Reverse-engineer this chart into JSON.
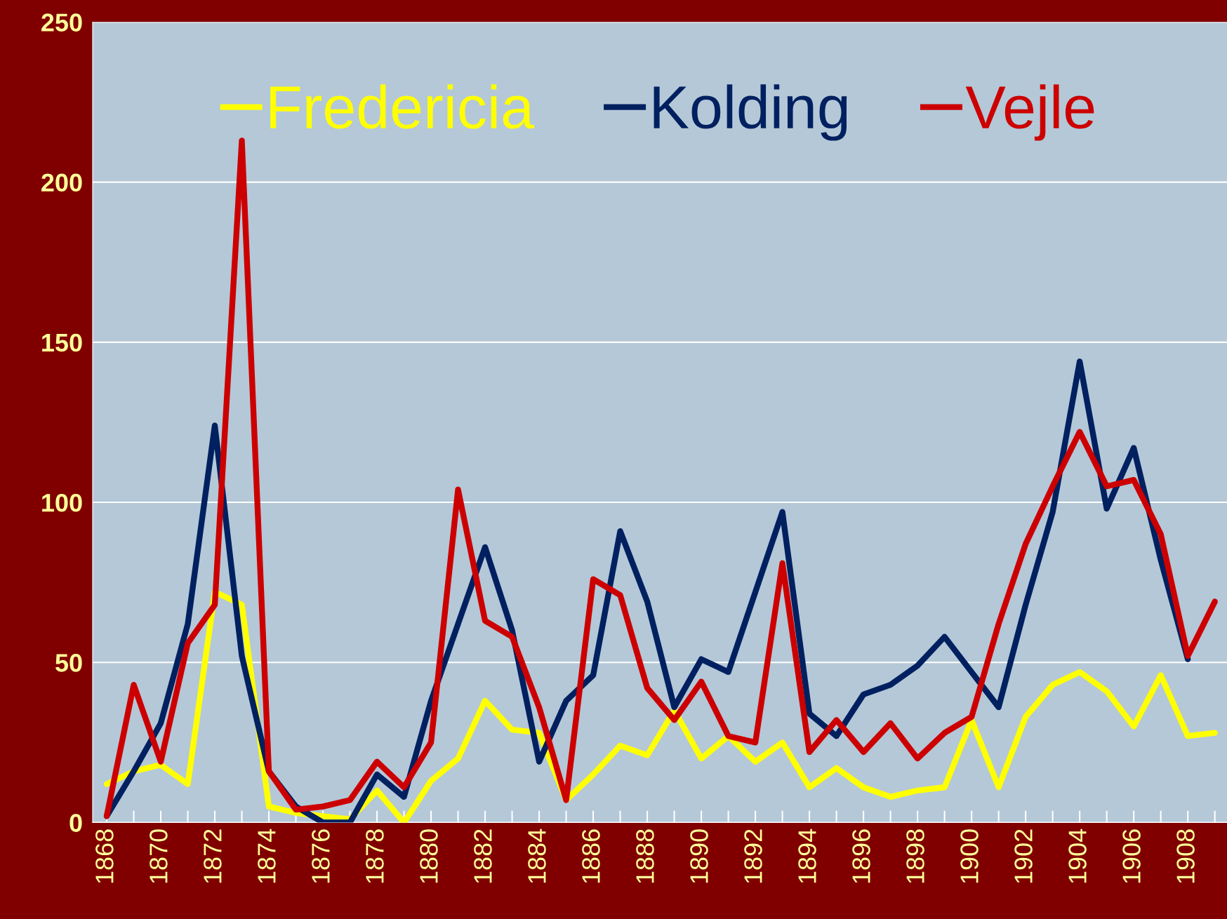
{
  "chart_data": {
    "type": "line",
    "categories": [
      "1868",
      null,
      "1870",
      null,
      "1872",
      null,
      "1874",
      null,
      "1876",
      null,
      "1878",
      null,
      "1880",
      null,
      "1882",
      null,
      "1884",
      null,
      "1886",
      null,
      "1888",
      null,
      "1890",
      null,
      "1892",
      null,
      "1894",
      null,
      "1896",
      null,
      "1898",
      null,
      "1900",
      null,
      "1902",
      null,
      "1904",
      null,
      "1906",
      null,
      "1908",
      null
    ],
    "series": [
      {
        "name": "Fredericia",
        "color": "#ffff00",
        "values": [
          12,
          16,
          18,
          12,
          72,
          68,
          5,
          3,
          2,
          1,
          10,
          0,
          13,
          20,
          38,
          29,
          28,
          7,
          15,
          24,
          21,
          35,
          20,
          27,
          19,
          25,
          11,
          17,
          11,
          8,
          10,
          11,
          32,
          11,
          33,
          43,
          47,
          41,
          30,
          46,
          27,
          28
        ]
      },
      {
        "name": "Kolding",
        "color": "#002060",
        "values": [
          2,
          16,
          31,
          62,
          124,
          52,
          16,
          5,
          0,
          0,
          15,
          8,
          38,
          62,
          86,
          60,
          19,
          38,
          46,
          91,
          69,
          36,
          51,
          47,
          72,
          97,
          34,
          27,
          40,
          43,
          49,
          58,
          47,
          36,
          68,
          97,
          144,
          98,
          117,
          82,
          51,
          null
        ]
      },
      {
        "name": "Vejle",
        "color": "#cc0000",
        "values": [
          2,
          43,
          19,
          56,
          68,
          213,
          16,
          4,
          5,
          7,
          19,
          11,
          25,
          104,
          63,
          58,
          36,
          7,
          76,
          71,
          42,
          32,
          44,
          27,
          25,
          81,
          22,
          32,
          22,
          31,
          20,
          28,
          33,
          62,
          87,
          105,
          122,
          105,
          107,
          90,
          52,
          69
        ]
      }
    ],
    "ylim": [
      0,
      250
    ],
    "yticks": [
      0,
      50,
      100,
      150,
      200,
      250
    ],
    "grid": "y",
    "legend": "top",
    "marker": "none",
    "line_style": "solid"
  }
}
